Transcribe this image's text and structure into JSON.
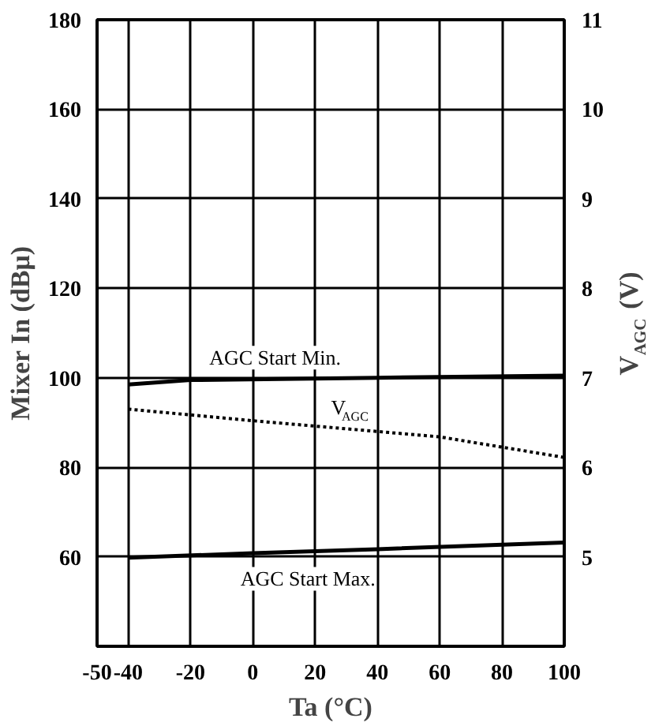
{
  "chart_data": {
    "type": "line",
    "xlabel": "Ta (°C)",
    "ylabel": "Mixer In (dBμ)",
    "y2label": "V$_{AGC}$ (V)",
    "xlim": [
      -50,
      100
    ],
    "xticks": [
      -50,
      -40,
      -20,
      0,
      20,
      40,
      60,
      80,
      100
    ],
    "ylim": [
      40,
      180
    ],
    "yticks": [
      60,
      80,
      100,
      120,
      140,
      160,
      180
    ],
    "y2lim": [
      4,
      11
    ],
    "y2ticks": [
      5,
      6,
      7,
      8,
      9,
      10,
      11
    ],
    "grid": true,
    "marker": "none",
    "series": [
      {
        "name": "AGC Start Min.",
        "color": "#000000",
        "x": [
          -40,
          -20,
          40,
          100
        ],
        "values": [
          98.5,
          99.5,
          100,
          100.5
        ],
        "line_style": "solid"
      },
      {
        "name": "V$_{AGC}$",
        "color": "#000000",
        "axis": "y2",
        "x": [
          -40,
          0,
          60,
          100
        ],
        "values": [
          6.65,
          6.52,
          6.34,
          6.11
        ],
        "line_style": "dotted"
      },
      {
        "name": "AGC Start Max.",
        "color": "#000000",
        "x": [
          -40,
          0,
          40,
          100
        ],
        "values": [
          59.8,
          60.8,
          61.7,
          63.2
        ],
        "line_style": "solid"
      }
    ]
  }
}
